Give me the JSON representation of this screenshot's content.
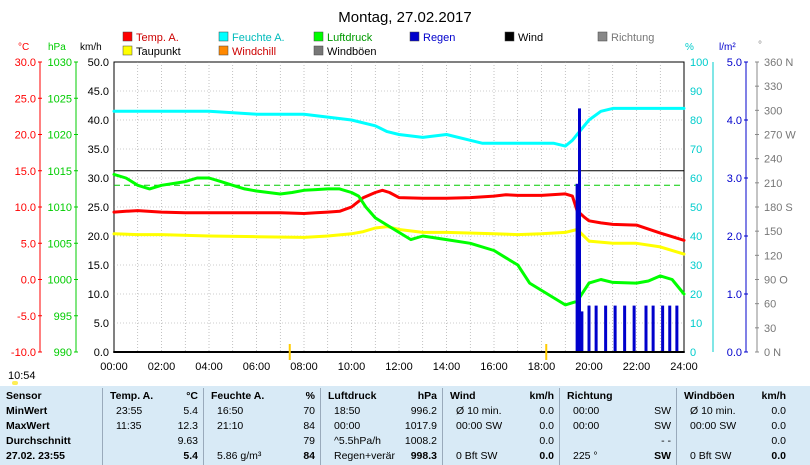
{
  "title": "Montag, 27.02.2017",
  "time_badge": "10:54",
  "legend": [
    {
      "label": "Temp. A.",
      "color": "#ff0000"
    },
    {
      "label": "Feuchte A.",
      "color": "#00ffff"
    },
    {
      "label": "Luftdruck",
      "color": "#00ff00"
    },
    {
      "label": "Regen",
      "color": "#0000cc"
    },
    {
      "label": "Wind",
      "color": "#000000"
    },
    {
      "label": "Richtung",
      "color": "#888888"
    },
    {
      "label": "Taupunkt",
      "color": "#ffff00"
    },
    {
      "label": "Windchill",
      "color": "#ff8800"
    },
    {
      "label": "Windböen",
      "color": "#777777"
    }
  ],
  "axis_units": {
    "temp": "°C",
    "pressure": "hPa",
    "wind": "km/h",
    "humidity": "%",
    "rain": "l/m²",
    "direction": "°"
  },
  "axes": {
    "temp": {
      "color": "#ff0000",
      "ticks": [
        "30.0",
        "25.0",
        "20.0",
        "15.0",
        "10.0",
        "5.0",
        "0.0",
        "-5.0",
        "-10.0"
      ]
    },
    "pressure": {
      "color": "#00cc00",
      "ticks": [
        "1030",
        "1025",
        "1020",
        "1015",
        "1010",
        "1005",
        "1000",
        "995",
        "990"
      ]
    },
    "wind": {
      "color": "#000000",
      "ticks": [
        "50.0",
        "45.0",
        "40.0",
        "35.0",
        "30.0",
        "25.0",
        "20.0",
        "15.0",
        "10.0",
        "5.0",
        "0.0"
      ]
    },
    "humidity": {
      "color": "#00cccc",
      "ticks": [
        "100",
        "90",
        "80",
        "70",
        "60",
        "50",
        "40",
        "30",
        "20",
        "10",
        "0"
      ]
    },
    "rain": {
      "color": "#0000cc",
      "ticks": [
        "5.0",
        "4.0",
        "3.0",
        "2.0",
        "1.0",
        "0.0"
      ]
    },
    "direction": {
      "color": "#888888",
      "ticks": [
        "360 N",
        "330",
        "300",
        "270 W",
        "240",
        "210",
        "180 S",
        "150",
        "120",
        "90 O",
        "60",
        "30",
        "0 N"
      ]
    },
    "x": {
      "ticks": [
        "00:00",
        "02:00",
        "04:00",
        "06:00",
        "08:00",
        "10:00",
        "12:00",
        "14:00",
        "16:00",
        "18:00",
        "20:00",
        "22:00",
        "24:00"
      ]
    }
  },
  "chart_data": {
    "type": "line",
    "title": "Montag, 27.02.2017",
    "x_unit": "hours",
    "x_range": [
      0,
      24
    ],
    "grid": true,
    "series": [
      {
        "name": "Temp. A.",
        "unit": "°C",
        "color": "#ff0000",
        "x": [
          0,
          0.5,
          1,
          2,
          3,
          4,
          5,
          6,
          7,
          8,
          8.5,
          9,
          9.5,
          10,
          10.5,
          11,
          11.3,
          11.6,
          12,
          13,
          14,
          15,
          16,
          16.5,
          17,
          18,
          19,
          19.3,
          19.5,
          19.8,
          20,
          20.5,
          21,
          22,
          23,
          24
        ],
        "y": [
          9.3,
          9.4,
          9.5,
          9.3,
          9.2,
          9.2,
          9.2,
          9.2,
          9.2,
          9.1,
          9.2,
          9.3,
          9.4,
          10.0,
          11.3,
          12.0,
          12.3,
          12.0,
          11.3,
          11.2,
          11.2,
          11.3,
          11.5,
          11.7,
          11.6,
          11.6,
          11.8,
          11.5,
          9.5,
          8.6,
          8.1,
          7.8,
          7.6,
          7.5,
          6.4,
          5.4
        ]
      },
      {
        "name": "Taupunkt",
        "unit": "°C",
        "color": "#ffff00",
        "x": [
          0,
          1,
          2,
          4,
          6,
          8,
          9,
          10,
          10.5,
          11,
          11.5,
          12,
          13,
          14,
          16,
          17,
          18,
          19,
          19.5,
          20,
          21,
          22,
          23,
          24
        ],
        "y": [
          6.3,
          6.2,
          6.2,
          6.0,
          5.9,
          5.8,
          6.0,
          6.3,
          6.6,
          7.1,
          7.3,
          6.9,
          6.5,
          6.5,
          6.3,
          6.2,
          6.3,
          6.5,
          6.9,
          5.3,
          5.0,
          5.0,
          4.5,
          3.5
        ]
      },
      {
        "name": "Feuchte A.",
        "unit": "%",
        "color": "#00ffff",
        "x": [
          0,
          2,
          4,
          6,
          7,
          8,
          9,
          10,
          11,
          11.5,
          12,
          13,
          14,
          15,
          15.5,
          16,
          17,
          18,
          18.5,
          19,
          19.3,
          19.6,
          20,
          20.5,
          21,
          22,
          23,
          24
        ],
        "y": [
          83,
          83,
          83,
          82,
          82,
          82,
          81,
          80,
          78,
          76,
          75,
          74,
          75,
          73,
          72,
          72,
          72,
          72,
          72,
          71,
          73,
          76,
          80,
          83,
          84,
          84,
          84,
          84
        ]
      },
      {
        "name": "Luftdruck",
        "unit": "hPa",
        "color": "#00ff00",
        "x": [
          0,
          0.5,
          1,
          1.5,
          2,
          3,
          3.5,
          4,
          4.5,
          5,
          5.5,
          6,
          6.5,
          7,
          7.5,
          8,
          8.5,
          9,
          9.5,
          10,
          10.3,
          10.6,
          11,
          11.5,
          12,
          12.5,
          13,
          14,
          15,
          16,
          16.5,
          17,
          17.5,
          18,
          18.5,
          19,
          19.5,
          20,
          20.5,
          21,
          22,
          22.5,
          23,
          23.5,
          24
        ],
        "y": [
          1014.5,
          1014,
          1013,
          1012.5,
          1013,
          1013.5,
          1014,
          1014,
          1013.5,
          1013,
          1012.5,
          1012.2,
          1012,
          1011.8,
          1012,
          1012.3,
          1012.4,
          1012.5,
          1012.5,
          1012,
          1011.5,
          1010,
          1008.5,
          1007.5,
          1006.5,
          1005.5,
          1006,
          1005.5,
          1005,
          1004,
          1003,
          1002,
          999.5,
          998.5,
          997.5,
          996.5,
          997,
          999.5,
          1000,
          999.6,
          999.5,
          999.8,
          1000.5,
          1000,
          998
        ]
      },
      {
        "name": "Regen",
        "unit": "l/m²",
        "color": "#0000cc",
        "x": [
          19.5,
          19.6,
          19.7,
          20.0,
          20.3,
          20.7,
          21.1,
          21.5,
          21.9,
          22.4,
          22.7,
          23.1,
          23.4,
          23.7
        ],
        "y": [
          2.9,
          4.2,
          0.7,
          0.8,
          0.8,
          0.8,
          0.8,
          0.8,
          0.8,
          0.8,
          0.8,
          0.8,
          0.8,
          0.8
        ]
      },
      {
        "name": "Wind",
        "unit": "km/h",
        "color": "#000000",
        "x": [
          0,
          24
        ],
        "y": [
          0,
          0
        ]
      }
    ]
  },
  "stats": {
    "rows": [
      "Sensor",
      "MinWert",
      "MaxWert",
      "Durchschnitt",
      "27.02. 23:55"
    ],
    "cols": [
      {
        "h": "Temp. A.",
        "u": "°C",
        "cells": [
          [
            "23:55",
            "5.4"
          ],
          [
            "11:35",
            "12.3"
          ],
          [
            "",
            "9.63"
          ],
          [
            "",
            "5.4"
          ]
        ]
      },
      {
        "h": "Feuchte A.",
        "u": "%",
        "cells": [
          [
            "16:50",
            "70"
          ],
          [
            "21:10",
            "84"
          ],
          [
            "",
            "79"
          ],
          [
            "5.86 g/m³",
            "84"
          ]
        ]
      },
      {
        "h": "Luftdruck",
        "u": "hPa",
        "cells": [
          [
            "18:50",
            "996.2"
          ],
          [
            "00:00",
            "1017.9"
          ],
          [
            "^5.5hPa/h",
            "1008.2"
          ],
          [
            "Regen+verär",
            "998.3"
          ]
        ]
      },
      {
        "h": "Wind",
        "u": "km/h",
        "cells": [
          [
            "Ø 10 min.",
            "0.0"
          ],
          [
            "00:00   SW",
            "0.0"
          ],
          [
            "",
            "0.0"
          ],
          [
            "0 Bft SW",
            "0.0"
          ]
        ]
      },
      {
        "h": "Richtung",
        "u": "",
        "cells": [
          [
            "00:00",
            "SW"
          ],
          [
            "00:00",
            "SW"
          ],
          [
            "",
            "- -"
          ],
          [
            "225 °",
            "SW"
          ]
        ]
      },
      {
        "h": "Windböen",
        "u": "km/h",
        "cells": [
          [
            "Ø 10 min.",
            "0.0"
          ],
          [
            "00:00   SW",
            "0.0"
          ],
          [
            "",
            "0.0"
          ],
          [
            "0 Bft SW",
            "0.0"
          ]
        ]
      }
    ]
  }
}
